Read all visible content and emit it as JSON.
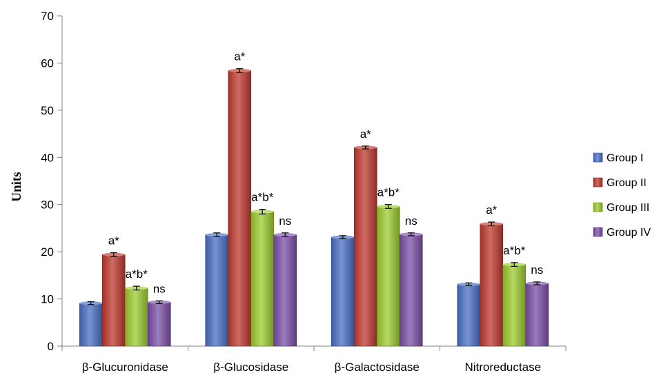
{
  "chart_data": {
    "type": "bar",
    "title": "",
    "xlabel": "",
    "ylabel": "Units",
    "ylim": [
      0,
      70
    ],
    "yticks": [
      0,
      10,
      20,
      30,
      40,
      50,
      60,
      70
    ],
    "yticks_text": [
      "0",
      "10",
      "20",
      "30",
      "40",
      "50",
      "60",
      "70"
    ],
    "categories": [
      "β-Glucuronidase",
      "β-Glucosidase",
      "β-Galactosidase",
      "Nitroreductase"
    ],
    "legend_position": "right",
    "grid": false,
    "series": [
      {
        "name": "Group I",
        "color": "#4a6fc4",
        "values": [
          9.1,
          23.6,
          23.1,
          13.1
        ],
        "errors": [
          0.3,
          0.4,
          0.3,
          0.3
        ],
        "annotations": [
          "",
          "",
          "",
          ""
        ]
      },
      {
        "name": "Group II",
        "color": "#c0392f",
        "values": [
          19.4,
          58.4,
          42.1,
          25.9
        ],
        "errors": [
          0.4,
          0.4,
          0.3,
          0.4
        ],
        "annotations": [
          "a*",
          "a*",
          "a*",
          "a*"
        ]
      },
      {
        "name": "Group III",
        "color": "#9ccc2e",
        "values": [
          12.3,
          28.5,
          29.6,
          17.3
        ],
        "errors": [
          0.4,
          0.5,
          0.4,
          0.4
        ],
        "annotations": [
          "a*b*",
          "a*b*",
          "a*b*",
          "a*b*"
        ]
      },
      {
        "name": "Group IV",
        "color": "#7b4fa8",
        "values": [
          9.3,
          23.6,
          23.7,
          13.3
        ],
        "errors": [
          0.3,
          0.4,
          0.3,
          0.3
        ],
        "annotations": [
          "ns",
          "ns",
          "ns",
          "ns"
        ]
      }
    ]
  }
}
